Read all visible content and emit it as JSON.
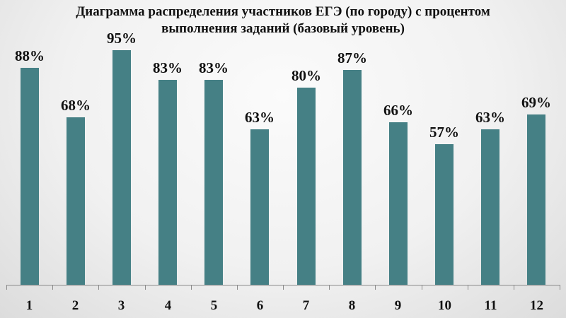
{
  "chart_data": {
    "type": "bar",
    "title": "Диаграмма распределения участников ЕГЭ (по городу) с процентом выполнения заданий (базовый уровень)",
    "title_lines": [
      "Диаграмма распределения участников ЕГЭ (по городу) с процентом",
      "выполнения заданий (базовый уровень)"
    ],
    "categories": [
      "1",
      "2",
      "3",
      "4",
      "5",
      "6",
      "7",
      "8",
      "9",
      "10",
      "11",
      "12"
    ],
    "values": [
      88,
      68,
      95,
      83,
      83,
      63,
      80,
      87,
      66,
      57,
      63,
      69
    ],
    "value_labels": [
      "88%",
      "68%",
      "95%",
      "83%",
      "83%",
      "63%",
      "80%",
      "87%",
      "66%",
      "57%",
      "63%",
      "69%"
    ],
    "xlabel": "",
    "ylabel": "",
    "ylim": [
      0,
      100
    ],
    "grid": false,
    "legend": null,
    "bar_color": "#458085"
  }
}
